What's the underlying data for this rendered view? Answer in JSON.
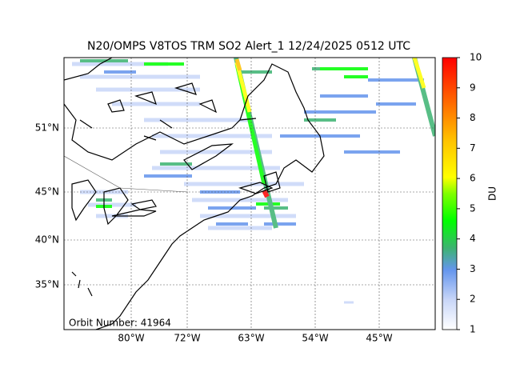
{
  "title": "N20/OMPS V8TOS TRM SO2 Alert_1 12/24/2025 0512 UTC",
  "map": {
    "lat_labels": [
      "51°N",
      "45°N",
      "40°N",
      "35°N"
    ],
    "lon_labels": [
      "80°W",
      "72°W",
      "63°W",
      "54°W",
      "45°W"
    ],
    "annotation": "Orbit Number: 41964"
  },
  "colorbar": {
    "label": "DU",
    "lim": [
      1,
      10
    ],
    "ticks": [
      1,
      2,
      3,
      4,
      5,
      6,
      7,
      8,
      9,
      10
    ]
  }
}
